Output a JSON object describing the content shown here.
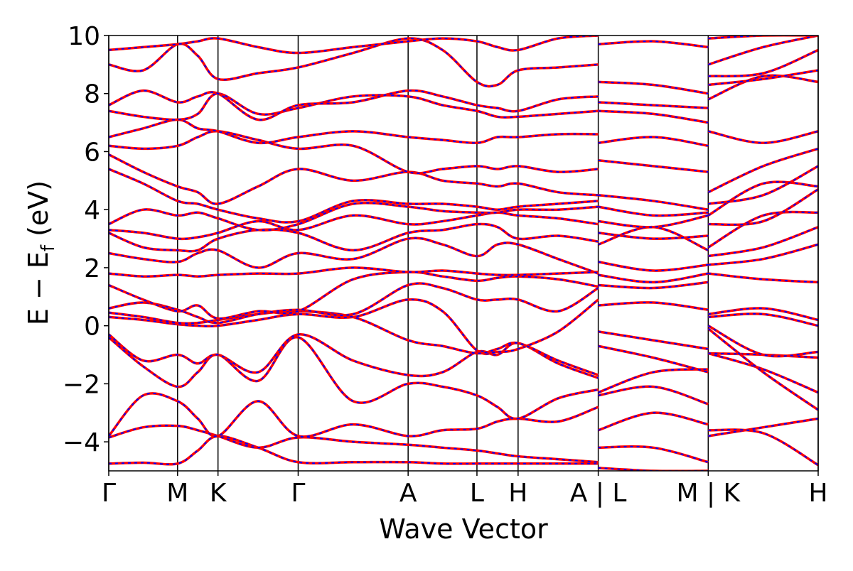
{
  "chart_data": {
    "type": "line",
    "xlabel": "Wave Vector",
    "ylabel": {
      "text": "E − E",
      "subscript": "f",
      "suffix": "(eV)"
    },
    "xlim": [
      0,
      10
    ],
    "ylim": [
      -5,
      10
    ],
    "xticks": [
      {
        "value": 0,
        "label": "Γ"
      },
      {
        "value": 0.97,
        "label": "M"
      },
      {
        "value": 1.54,
        "label": "K"
      },
      {
        "value": 2.67,
        "label": "Γ"
      },
      {
        "value": 4.22,
        "label": "A"
      },
      {
        "value": 5.19,
        "label": "L"
      },
      {
        "value": 5.77,
        "label": "H"
      },
      {
        "value": 6.9,
        "label": "A | L"
      },
      {
        "value": 8.45,
        "label": "M | K"
      },
      {
        "value": 10,
        "label": "H"
      }
    ],
    "yticks": [
      {
        "value": -4,
        "label": "−4"
      },
      {
        "value": -2,
        "label": "−2"
      },
      0,
      2,
      4,
      6,
      8,
      10
    ],
    "vertical_lines": true,
    "color": "#ff0000",
    "dash_color": "#0000ff",
    "x": [
      0,
      0.485,
      0.97,
      1.255,
      1.54,
      2.105,
      2.67,
      3.445,
      4.22,
      4.705,
      5.19,
      5.48,
      5.77,
      6.335,
      6.9,
      6.9,
      6.9,
      7.675,
      8.45,
      8.45,
      8.45,
      9.225,
      10
    ],
    "series": [
      {
        "values": [
          -4.75,
          -4.72,
          -4.75,
          -4.3,
          -3.8,
          -4.2,
          -4.7,
          -4.7,
          -4.7,
          -4.75,
          -4.75,
          -4.75,
          -4.75,
          -4.75,
          -4.75,
          null,
          -4.9,
          -5.0,
          -5.0,
          null,
          -3.8,
          -3.5,
          -3.2
        ]
      },
      {
        "values": [
          -3.85,
          -3.5,
          -3.45,
          -3.6,
          -3.8,
          -4.2,
          -3.85,
          -4.0,
          -4.1,
          -4.2,
          -4.3,
          -4.4,
          -4.5,
          -4.6,
          -4.7,
          null,
          -4.2,
          -4.2,
          -4.7,
          null,
          -3.6,
          -3.7,
          -4.8
        ]
      },
      {
        "values": [
          -3.8,
          -2.4,
          -2.6,
          -3.2,
          -3.8,
          -2.6,
          -3.8,
          -3.4,
          -3.8,
          -3.6,
          -3.55,
          -3.3,
          -3.2,
          -3.3,
          -2.8,
          null,
          -3.6,
          -3.0,
          -3.4,
          null,
          -0.95,
          -1.5,
          -2.3
        ]
      },
      {
        "values": [
          -0.4,
          -1.4,
          -2.1,
          -1.6,
          -1.0,
          -1.9,
          -0.4,
          -2.6,
          -2.0,
          -2.1,
          -2.4,
          -2.8,
          -3.2,
          -2.5,
          -2.2,
          null,
          -2.4,
          -2.1,
          -2.7,
          null,
          -0.95,
          -1.0,
          -1.1
        ]
      },
      {
        "values": [
          -0.3,
          -1.2,
          -1.0,
          -1.3,
          -1.0,
          -1.6,
          -0.3,
          -1.2,
          -1.7,
          -1.6,
          -0.9,
          -1.0,
          -0.6,
          -1.3,
          -1.8,
          null,
          -2.3,
          -1.6,
          -1.5,
          null,
          -0.1,
          -1.6,
          -2.9
        ]
      },
      {
        "values": [
          0.3,
          0.2,
          0.05,
          0.0,
          0.0,
          0.2,
          0.4,
          0.3,
          0.9,
          0.5,
          -0.85,
          -0.9,
          -0.8,
          -0.2,
          0.9,
          null,
          -0.7,
          -1.1,
          -1.6,
          null,
          0.0,
          -1.0,
          -0.9
        ]
      },
      {
        "values": [
          0.45,
          0.3,
          0.1,
          0.1,
          0.2,
          0.4,
          0.5,
          0.3,
          -0.5,
          -0.7,
          -0.95,
          -0.8,
          -0.6,
          -1.2,
          -1.7,
          null,
          -0.2,
          -0.5,
          -0.8,
          null,
          0.3,
          0.4,
          0.0
        ]
      },
      {
        "values": [
          0.6,
          0.8,
          0.55,
          0.3,
          0.1,
          0.4,
          0.55,
          0.4,
          1.4,
          1.3,
          0.9,
          0.9,
          0.9,
          0.5,
          1.3,
          null,
          0.7,
          0.8,
          0.55,
          null,
          0.4,
          0.6,
          0.2
        ]
      },
      {
        "values": [
          1.4,
          0.9,
          0.5,
          0.7,
          0.25,
          0.5,
          0.5,
          1.6,
          1.85,
          1.7,
          1.55,
          1.65,
          1.7,
          1.6,
          1.35,
          null,
          1.4,
          1.3,
          1.5,
          null,
          1.8,
          1.6,
          1.5
        ]
      },
      {
        "values": [
          1.8,
          1.7,
          1.75,
          1.7,
          1.75,
          1.8,
          1.8,
          2.0,
          1.85,
          1.9,
          1.8,
          1.75,
          1.75,
          1.8,
          1.85,
          null,
          1.75,
          1.5,
          1.8,
          null,
          2.1,
          2.3,
          2.8
        ]
      },
      {
        "values": [
          2.5,
          2.3,
          2.2,
          2.5,
          2.6,
          2.0,
          2.5,
          2.3,
          3.0,
          2.8,
          2.4,
          2.8,
          2.8,
          2.3,
          1.8,
          null,
          2.2,
          1.9,
          2.1,
          null,
          2.4,
          2.7,
          3.4
        ]
      },
      {
        "values": [
          3.2,
          2.7,
          2.6,
          2.6,
          3.0,
          3.3,
          3.2,
          2.6,
          3.2,
          3.3,
          3.5,
          3.4,
          3.0,
          3.1,
          2.9,
          null,
          2.8,
          3.4,
          2.6,
          null,
          2.7,
          3.8,
          3.9
        ]
      },
      {
        "values": [
          3.3,
          3.2,
          3.0,
          3.05,
          3.2,
          3.6,
          3.3,
          3.8,
          3.5,
          3.6,
          3.8,
          3.9,
          3.8,
          3.7,
          3.5,
          null,
          3.2,
          3.0,
          3.1,
          null,
          3.5,
          3.6,
          4.7
        ]
      },
      {
        "values": [
          3.5,
          4.0,
          3.8,
          3.9,
          3.7,
          3.3,
          3.5,
          4.2,
          4.1,
          3.95,
          3.9,
          3.9,
          4.0,
          4.0,
          4.1,
          null,
          3.6,
          3.4,
          3.8,
          null,
          3.8,
          4.9,
          4.8
        ]
      },
      {
        "values": [
          5.4,
          4.9,
          4.3,
          4.2,
          4.0,
          3.7,
          3.6,
          4.3,
          4.2,
          4.2,
          4.1,
          4.0,
          4.1,
          4.2,
          4.3,
          null,
          4.1,
          3.8,
          3.9,
          null,
          4.2,
          4.5,
          5.5
        ]
      },
      {
        "values": [
          5.9,
          5.3,
          4.8,
          4.6,
          4.2,
          4.8,
          5.4,
          5.0,
          5.3,
          5.0,
          4.9,
          4.8,
          4.9,
          4.6,
          4.5,
          null,
          4.5,
          4.3,
          4.0,
          null,
          4.6,
          5.5,
          6.1
        ]
      },
      {
        "values": [
          6.2,
          6.1,
          6.2,
          6.5,
          6.7,
          6.4,
          6.1,
          6.2,
          5.3,
          5.4,
          5.5,
          5.4,
          5.5,
          5.3,
          5.4,
          null,
          5.7,
          5.5,
          5.3,
          null,
          6.7,
          6.3,
          6.7
        ]
      },
      {
        "values": [
          6.5,
          6.8,
          7.1,
          6.8,
          6.7,
          6.3,
          6.5,
          6.7,
          6.5,
          6.4,
          6.3,
          6.5,
          6.5,
          6.6,
          6.6,
          null,
          6.3,
          6.5,
          6.2,
          null,
          7.8,
          8.6,
          8.4
        ]
      },
      {
        "values": [
          7.4,
          7.2,
          7.1,
          7.3,
          8.0,
          7.3,
          7.5,
          7.9,
          7.9,
          7.6,
          7.4,
          7.2,
          7.2,
          7.3,
          7.4,
          null,
          7.4,
          7.3,
          7.0,
          null,
          8.3,
          8.5,
          8.8
        ]
      },
      {
        "values": [
          7.6,
          8.1,
          7.7,
          7.9,
          8.0,
          7.1,
          7.6,
          7.7,
          8.1,
          7.9,
          7.6,
          7.5,
          7.4,
          7.8,
          7.9,
          null,
          7.7,
          7.6,
          7.5,
          null,
          8.6,
          8.7,
          9.5
        ]
      },
      {
        "values": [
          9.0,
          8.8,
          9.7,
          9.3,
          8.5,
          8.7,
          8.9,
          9.4,
          9.9,
          9.5,
          8.4,
          8.3,
          8.8,
          8.9,
          9.0,
          null,
          8.4,
          8.3,
          8.0,
          null,
          9.0,
          9.6,
          10.0
        ]
      },
      {
        "values": [
          9.5,
          9.6,
          9.7,
          9.8,
          9.9,
          9.6,
          9.4,
          9.6,
          9.8,
          9.9,
          9.8,
          9.6,
          9.5,
          9.9,
          10.0,
          null,
          9.7,
          9.8,
          9.6,
          null,
          9.9,
          10.0,
          10.0
        ]
      }
    ]
  }
}
